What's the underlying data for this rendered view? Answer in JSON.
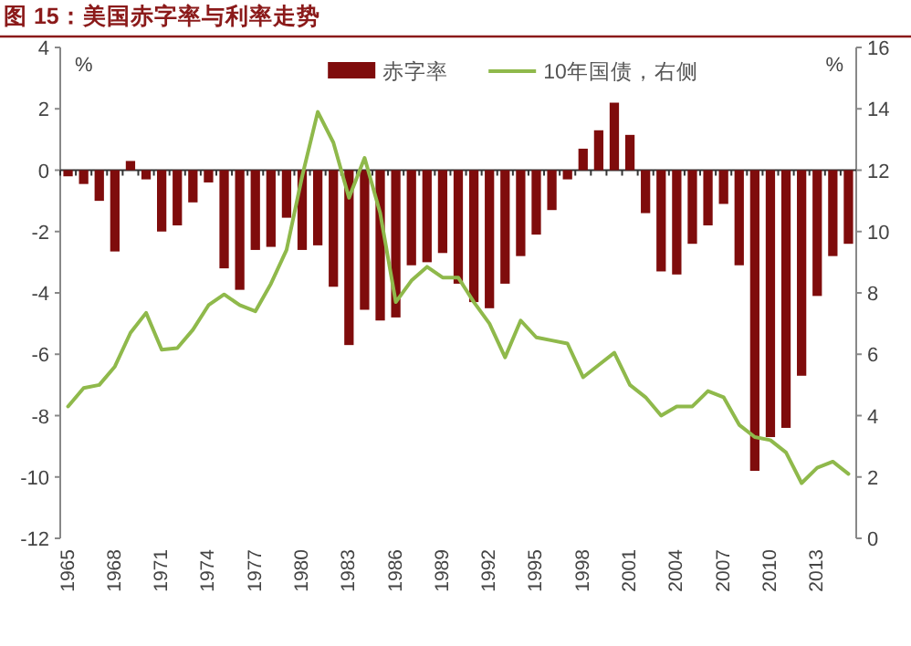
{
  "chart_data": {
    "type": "bar",
    "title": "图 15：美国赤字率与利率走势",
    "ylabel": "%",
    "y2label": "%",
    "categories": [
      "1965",
      null,
      null,
      "1968",
      null,
      null,
      "1971",
      null,
      null,
      "1974",
      null,
      null,
      "1977",
      null,
      null,
      "1980",
      null,
      null,
      "1983",
      null,
      null,
      "1986",
      null,
      null,
      "1989",
      null,
      null,
      "1992",
      null,
      null,
      "1995",
      null,
      null,
      "1998",
      null,
      null,
      "2001",
      null,
      null,
      "2004",
      null,
      null,
      "2007",
      null,
      null,
      "2010",
      null,
      null,
      "2013",
      null,
      null
    ],
    "series": [
      {
        "name": "赤字率",
        "color": "#7f0c0c",
        "values": [
          -0.2,
          -0.45,
          -1.0,
          -2.65,
          0.3,
          -0.3,
          -2.0,
          -1.8,
          -1.05,
          -0.4,
          -3.2,
          -3.9,
          -2.6,
          -2.5,
          -1.55,
          -2.6,
          -2.45,
          -3.8,
          -5.7,
          -4.55,
          -4.9,
          -4.8,
          -3.1,
          -3.0,
          -2.7,
          -3.7,
          -4.3,
          -4.5,
          -3.7,
          -2.8,
          -2.1,
          -1.3,
          -0.3,
          0.7,
          1.3,
          2.2,
          1.15,
          -1.4,
          -3.3,
          -3.4,
          -2.4,
          -1.8,
          -1.1,
          -3.1,
          -9.8,
          -8.7,
          -8.4,
          -6.7,
          -4.1,
          -2.8,
          -2.4
        ]
      },
      {
        "name": "10年国债，右侧",
        "type": "line",
        "axis": "y2",
        "color": "#8fb94b",
        "values": [
          4.3,
          4.9,
          5.0,
          5.6,
          6.7,
          7.35,
          6.15,
          6.2,
          6.8,
          7.6,
          7.95,
          7.6,
          7.4,
          8.3,
          9.4,
          11.8,
          13.9,
          12.9,
          11.1,
          12.4,
          10.6,
          7.7,
          8.4,
          8.85,
          8.5,
          8.5,
          7.7,
          7.0,
          5.9,
          7.1,
          6.55,
          6.45,
          6.35,
          5.25,
          5.65,
          6.05,
          5.0,
          4.6,
          4.0,
          4.3,
          4.3,
          4.8,
          4.6,
          3.7,
          3.3,
          3.2,
          2.8,
          1.8,
          2.3,
          2.5,
          2.1
        ]
      }
    ],
    "ylim": [
      -12,
      4
    ],
    "yticks": [
      -12,
      -10,
      -8,
      -6,
      -4,
      -2,
      0,
      2,
      4
    ],
    "y2lim": [
      0,
      16
    ],
    "y2ticks": [
      0,
      2,
      4,
      6,
      8,
      10,
      12,
      14,
      16
    ],
    "legend": "top"
  }
}
